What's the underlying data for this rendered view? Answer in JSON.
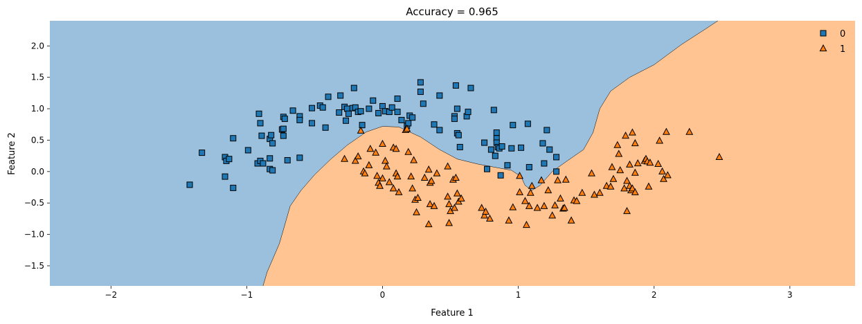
{
  "chart_data": {
    "type": "scatter",
    "title": "Accuracy = 0.965",
    "xlabel": "Feature 1",
    "ylabel": "Feature 2",
    "xlim": [
      -2.45,
      3.48
    ],
    "ylim": [
      -1.82,
      2.4
    ],
    "xticks": [
      -2,
      -1,
      0,
      1,
      2,
      3
    ],
    "xtick_labels": [
      "−2",
      "−1",
      "0",
      "1",
      "2",
      "3"
    ],
    "yticks": [
      -1.5,
      -1.0,
      -0.5,
      0.0,
      0.5,
      1.0,
      1.5,
      2.0
    ],
    "ytick_labels": [
      "−1.5",
      "−1.0",
      "−0.5",
      "0.0",
      "0.5",
      "1.0",
      "1.5",
      "2.0"
    ],
    "legend_position": "top-right",
    "regions": {
      "class_0_color": "#9bc0dd",
      "class_1_color": "#ffc491",
      "boundary": [
        [
          -0.88,
          -1.82
        ],
        [
          -0.85,
          -1.6
        ],
        [
          -0.76,
          -1.15
        ],
        [
          -0.72,
          -0.85
        ],
        [
          -0.68,
          -0.55
        ],
        [
          -0.6,
          -0.3
        ],
        [
          -0.5,
          -0.05
        ],
        [
          -0.38,
          0.2
        ],
        [
          -0.26,
          0.42
        ],
        [
          -0.12,
          0.63
        ],
        [
          0.0,
          0.72
        ],
        [
          0.12,
          0.71
        ],
        [
          0.28,
          0.55
        ],
        [
          0.42,
          0.35
        ],
        [
          0.55,
          0.2
        ],
        [
          0.7,
          0.12
        ],
        [
          0.85,
          0.06
        ],
        [
          0.95,
          0.02
        ],
        [
          1.02,
          -0.08
        ],
        [
          1.05,
          -0.22
        ],
        [
          1.1,
          -0.3
        ],
        [
          1.16,
          -0.22
        ],
        [
          1.25,
          0.0
        ],
        [
          1.38,
          0.2
        ],
        [
          1.48,
          0.35
        ],
        [
          1.55,
          0.62
        ],
        [
          1.6,
          1.0
        ],
        [
          1.68,
          1.28
        ],
        [
          1.82,
          1.5
        ],
        [
          2.0,
          1.7
        ],
        [
          2.2,
          2.02
        ],
        [
          2.4,
          2.3
        ],
        [
          2.47,
          2.4
        ]
      ]
    },
    "series": [
      {
        "name": "0",
        "marker": "square",
        "color": "#1f77b4",
        "points": [
          [
            -1.42,
            -0.21
          ],
          [
            -1.33,
            0.3
          ],
          [
            -1.16,
            0.23
          ],
          [
            -1.15,
            0.17
          ],
          [
            -1.13,
            0.2
          ],
          [
            -1.1,
            0.53
          ],
          [
            -1.16,
            -0.08
          ],
          [
            -1.1,
            -0.26
          ],
          [
            -0.99,
            0.34
          ],
          [
            -0.92,
            0.13
          ],
          [
            -0.9,
            0.17
          ],
          [
            -0.88,
            0.13
          ],
          [
            -0.9,
            0.77
          ],
          [
            -0.91,
            0.92
          ],
          [
            -0.89,
            0.57
          ],
          [
            -0.83,
            0.21
          ],
          [
            -0.83,
            0.04
          ],
          [
            -0.81,
            0.02
          ],
          [
            -0.83,
            0.52
          ],
          [
            -0.81,
            0.45
          ],
          [
            -0.82,
            0.58
          ],
          [
            -0.74,
            0.67
          ],
          [
            -0.73,
            0.57
          ],
          [
            -0.73,
            0.87
          ],
          [
            -0.72,
            0.84
          ],
          [
            -0.73,
            0.68
          ],
          [
            -0.7,
            0.18
          ],
          [
            -0.66,
            0.97
          ],
          [
            -0.61,
            0.88
          ],
          [
            -0.61,
            0.82
          ],
          [
            -0.61,
            0.22
          ],
          [
            -0.52,
            1.01
          ],
          [
            -0.52,
            0.77
          ],
          [
            -0.46,
            1.05
          ],
          [
            -0.44,
            1.02
          ],
          [
            -0.42,
            0.7
          ],
          [
            -0.4,
            1.19
          ],
          [
            -0.32,
            0.94
          ],
          [
            -0.31,
            1.21
          ],
          [
            -0.28,
            1.03
          ],
          [
            -0.27,
            0.81
          ],
          [
            -0.26,
            1.0
          ],
          [
            -0.25,
            0.92
          ],
          [
            -0.22,
            1.01
          ],
          [
            -0.21,
            1.33
          ],
          [
            -0.2,
            1.02
          ],
          [
            -0.18,
            0.95
          ],
          [
            -0.16,
            0.96
          ],
          [
            -0.15,
            0.74
          ],
          [
            -0.1,
            1.0
          ],
          [
            -0.07,
            1.13
          ],
          [
            -0.03,
            0.93
          ],
          [
            0.0,
            1.04
          ],
          [
            0.02,
            0.96
          ],
          [
            0.05,
            0.95
          ],
          [
            0.07,
            1.02
          ],
          [
            0.11,
            1.16
          ],
          [
            0.11,
            0.95
          ],
          [
            0.14,
            0.82
          ],
          [
            0.18,
            0.73
          ],
          [
            0.19,
            0.77
          ],
          [
            0.2,
            0.89
          ],
          [
            0.22,
            0.86
          ],
          [
            0.28,
            1.42
          ],
          [
            0.28,
            1.27
          ],
          [
            0.3,
            1.08
          ],
          [
            0.38,
            0.75
          ],
          [
            0.42,
            0.66
          ],
          [
            0.42,
            1.21
          ],
          [
            0.53,
            0.88
          ],
          [
            0.53,
            0.84
          ],
          [
            0.54,
            1.37
          ],
          [
            0.55,
            1.0
          ],
          [
            0.55,
            0.61
          ],
          [
            0.56,
            0.58
          ],
          [
            0.57,
            0.39
          ],
          [
            0.62,
            0.88
          ],
          [
            0.63,
            0.95
          ],
          [
            0.65,
            1.33
          ],
          [
            0.75,
            0.46
          ],
          [
            0.77,
            0.04
          ],
          [
            0.8,
            0.35
          ],
          [
            0.82,
            0.98
          ],
          [
            0.83,
            0.25
          ],
          [
            0.84,
            0.62
          ],
          [
            0.84,
            0.53
          ],
          [
            0.84,
            0.46
          ],
          [
            0.85,
            0.39
          ],
          [
            0.86,
            0.37
          ],
          [
            0.87,
            -0.06
          ],
          [
            0.88,
            0.4
          ],
          [
            0.92,
            0.1
          ],
          [
            0.95,
            0.37
          ],
          [
            0.96,
            0.74
          ],
          [
            1.02,
            0.38
          ],
          [
            1.07,
            0.76
          ],
          [
            1.08,
            0.07
          ],
          [
            1.18,
            0.45
          ],
          [
            1.19,
            0.13
          ],
          [
            1.23,
            0.35
          ],
          [
            1.21,
            0.66
          ],
          [
            1.28,
            0.23
          ],
          [
            1.28,
            0.0
          ]
        ]
      },
      {
        "name": "1",
        "marker": "triangle",
        "color": "#ff7f0e",
        "points": [
          [
            -0.28,
            0.2
          ],
          [
            -0.2,
            0.17
          ],
          [
            -0.18,
            0.24
          ],
          [
            -0.16,
            0.65
          ],
          [
            -0.14,
            0.0
          ],
          [
            -0.13,
            -0.03
          ],
          [
            -0.1,
            0.1
          ],
          [
            -0.09,
            0.36
          ],
          [
            -0.05,
            0.3
          ],
          [
            -0.04,
            -0.07
          ],
          [
            -0.03,
            -0.18
          ],
          [
            -0.02,
            -0.23
          ],
          [
            0.0,
            -0.11
          ],
          [
            0.0,
            0.44
          ],
          [
            0.02,
            0.17
          ],
          [
            0.03,
            0.08
          ],
          [
            0.05,
            -0.17
          ],
          [
            0.08,
            0.38
          ],
          [
            0.08,
            -0.27
          ],
          [
            0.1,
            0.36
          ],
          [
            0.1,
            -0.03
          ],
          [
            0.11,
            -0.08
          ],
          [
            0.12,
            -0.33
          ],
          [
            0.17,
            0.66
          ],
          [
            0.18,
            0.68
          ],
          [
            0.19,
            0.31
          ],
          [
            0.21,
            -0.08
          ],
          [
            0.22,
            -0.27
          ],
          [
            0.23,
            0.18
          ],
          [
            0.24,
            -0.45
          ],
          [
            0.25,
            -0.65
          ],
          [
            0.26,
            -0.42
          ],
          [
            0.31,
            -0.1
          ],
          [
            0.34,
            -0.84
          ],
          [
            0.34,
            0.03
          ],
          [
            0.35,
            -0.52
          ],
          [
            0.35,
            -0.18
          ],
          [
            0.36,
            -0.15
          ],
          [
            0.38,
            -0.55
          ],
          [
            0.4,
            -0.03
          ],
          [
            0.48,
            0.08
          ],
          [
            0.48,
            -0.4
          ],
          [
            0.49,
            -0.82
          ],
          [
            0.49,
            -0.52
          ],
          [
            0.5,
            -0.63
          ],
          [
            0.52,
            -0.13
          ],
          [
            0.53,
            -0.58
          ],
          [
            0.54,
            -0.1
          ],
          [
            0.55,
            -0.35
          ],
          [
            0.56,
            -0.48
          ],
          [
            0.58,
            -0.43
          ],
          [
            0.73,
            -0.58
          ],
          [
            0.75,
            -0.7
          ],
          [
            0.76,
            -0.64
          ],
          [
            0.79,
            -0.75
          ],
          [
            0.93,
            -0.78
          ],
          [
            0.96,
            -0.57
          ],
          [
            1.01,
            -0.33
          ],
          [
            1.01,
            -0.07
          ],
          [
            1.05,
            -0.47
          ],
          [
            1.06,
            -0.85
          ],
          [
            1.08,
            -0.55
          ],
          [
            1.09,
            -0.34
          ],
          [
            1.1,
            -0.23
          ],
          [
            1.14,
            -0.58
          ],
          [
            1.17,
            -0.14
          ],
          [
            1.19,
            -0.55
          ],
          [
            1.22,
            -0.3
          ],
          [
            1.25,
            -0.7
          ],
          [
            1.27,
            -0.54
          ],
          [
            1.29,
            -0.14
          ],
          [
            1.31,
            -0.43
          ],
          [
            1.33,
            -0.59
          ],
          [
            1.34,
            -0.58
          ],
          [
            1.35,
            -0.13
          ],
          [
            1.39,
            -0.78
          ],
          [
            1.41,
            -0.46
          ],
          [
            1.43,
            -0.47
          ],
          [
            1.47,
            -0.34
          ],
          [
            1.54,
            -0.03
          ],
          [
            1.56,
            -0.37
          ],
          [
            1.6,
            -0.34
          ],
          [
            1.65,
            -0.23
          ],
          [
            1.68,
            -0.24
          ],
          [
            1.69,
            0.07
          ],
          [
            1.7,
            -0.12
          ],
          [
            1.73,
            0.42
          ],
          [
            1.74,
            0.28
          ],
          [
            1.75,
            0.02
          ],
          [
            1.78,
            -0.27
          ],
          [
            1.79,
            0.57
          ],
          [
            1.8,
            -0.15
          ],
          [
            1.8,
            -0.63
          ],
          [
            1.82,
            -0.23
          ],
          [
            1.82,
            0.11
          ],
          [
            1.83,
            -0.3
          ],
          [
            1.84,
            -0.27
          ],
          [
            1.84,
            0.62
          ],
          [
            1.86,
            -0.33
          ],
          [
            1.86,
            0.45
          ],
          [
            1.86,
            -0.02
          ],
          [
            1.88,
            0.13
          ],
          [
            1.93,
            0.17
          ],
          [
            1.94,
            0.2
          ],
          [
            1.95,
            0.16
          ],
          [
            1.96,
            -0.24
          ],
          [
            1.97,
            0.14
          ],
          [
            2.03,
            0.12
          ],
          [
            2.04,
            0.49
          ],
          [
            2.06,
            0.0
          ],
          [
            2.07,
            -0.12
          ],
          [
            2.09,
            0.63
          ],
          [
            2.1,
            -0.06
          ],
          [
            2.26,
            0.63
          ],
          [
            2.48,
            0.23
          ]
        ]
      }
    ]
  }
}
